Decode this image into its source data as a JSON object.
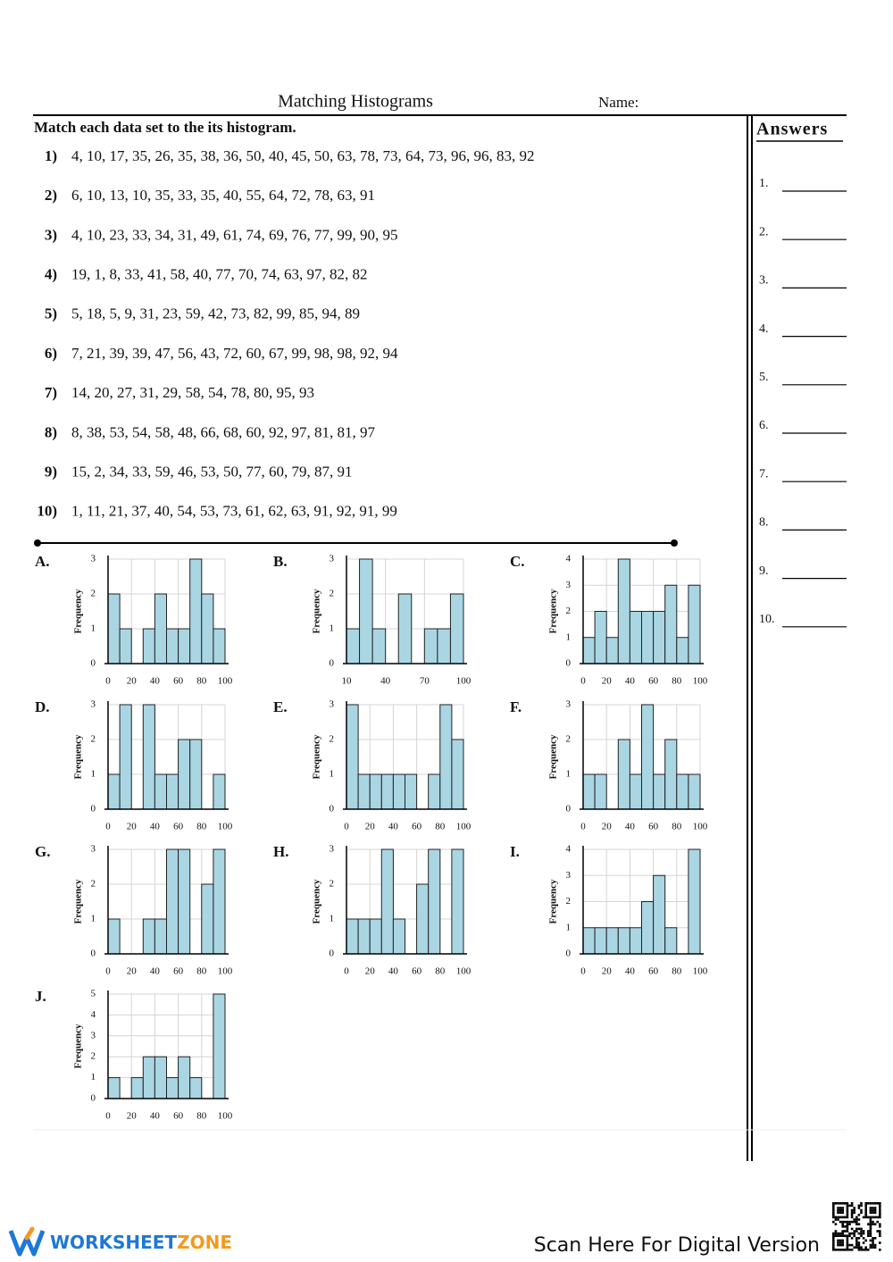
{
  "header": {
    "title": "Matching Histograms",
    "name_label": "Name:"
  },
  "instructions": "Match each data set to the its histogram.",
  "problems": [
    {
      "number": "1)",
      "data": "4, 10, 17, 35, 26, 35, 38, 36, 50, 40, 45, 50, 63, 78, 73, 64, 73, 96, 96, 83, 92"
    },
    {
      "number": "2)",
      "data": "6, 10, 13, 10, 35, 33, 35, 40, 55, 64, 72, 78, 63, 91"
    },
    {
      "number": "3)",
      "data": "4, 10, 23, 33, 34, 31, 49, 61, 74, 69, 76, 77, 99, 90, 95"
    },
    {
      "number": "4)",
      "data": "19, 1, 8, 33, 41, 58, 40, 77, 70, 74, 63, 97, 82, 82"
    },
    {
      "number": "5)",
      "data": "5, 18, 5, 9, 31, 23, 59, 42, 73, 82, 99, 85, 94, 89"
    },
    {
      "number": "6)",
      "data": "7, 21, 39, 39, 47, 56, 43, 72, 60, 67, 99, 98, 98, 92, 94"
    },
    {
      "number": "7)",
      "data": "14, 20, 27, 31, 29, 58, 54, 78, 80, 95, 93"
    },
    {
      "number": "8)",
      "data": "8, 38, 53, 54, 58, 48, 66, 68, 60, 92, 97, 81, 81, 97"
    },
    {
      "number": "9)",
      "data": "15, 2, 34, 33, 59, 46, 53, 50, 77, 60, 79, 87, 91"
    },
    {
      "number": "10)",
      "data": "1, 11, 21, 37, 40, 54, 53, 73, 61, 62, 63, 91, 92, 91, 99"
    }
  ],
  "answers": {
    "title": "Answers",
    "items": [
      "1.",
      "2.",
      "3.",
      "4.",
      "5.",
      "6.",
      "7.",
      "8.",
      "9.",
      "10."
    ]
  },
  "chart_data": [
    {
      "type": "histogram",
      "label": "A.",
      "y_label": "Frequency",
      "color": "#aad6e4",
      "grid": true,
      "bins": [
        0,
        10,
        20,
        30,
        40,
        50,
        60,
        70,
        80,
        90,
        100
      ],
      "counts": [
        2,
        1,
        0,
        1,
        2,
        1,
        1,
        3,
        2,
        1
      ],
      "xlim": [
        0,
        100
      ],
      "ylim": [
        0,
        3
      ],
      "xticks": [
        0,
        20,
        40,
        60,
        80,
        100
      ],
      "yticks": [
        0,
        1,
        2,
        3
      ]
    },
    {
      "type": "histogram",
      "label": "B.",
      "y_label": "Frequency",
      "color": "#aad6e4",
      "grid": true,
      "bins": [
        10,
        20,
        30,
        40,
        50,
        60,
        70,
        80,
        90,
        100
      ],
      "counts": [
        1,
        3,
        1,
        0,
        2,
        0,
        1,
        1,
        2
      ],
      "xlim": [
        10,
        100
      ],
      "ylim": [
        0,
        3
      ],
      "xticks": [
        10,
        40,
        70,
        100
      ],
      "yticks": [
        0,
        1,
        2,
        3
      ]
    },
    {
      "type": "histogram",
      "label": "C.",
      "y_label": "Frequency",
      "color": "#aad6e4",
      "grid": true,
      "bins": [
        0,
        10,
        20,
        30,
        40,
        50,
        60,
        70,
        80,
        90,
        100
      ],
      "counts": [
        1,
        2,
        1,
        4,
        2,
        2,
        2,
        3,
        1,
        3
      ],
      "xlim": [
        0,
        100
      ],
      "ylim": [
        0,
        4
      ],
      "xticks": [
        0,
        20,
        40,
        60,
        80,
        100
      ],
      "yticks": [
        0,
        1,
        2,
        3,
        4
      ]
    },
    {
      "type": "histogram",
      "label": "D.",
      "y_label": "Frequency",
      "color": "#aad6e4",
      "grid": true,
      "bins": [
        0,
        10,
        20,
        30,
        40,
        50,
        60,
        70,
        80,
        90,
        100
      ],
      "counts": [
        1,
        3,
        0,
        3,
        1,
        1,
        2,
        2,
        0,
        1
      ],
      "xlim": [
        0,
        100
      ],
      "ylim": [
        0,
        3
      ],
      "xticks": [
        0,
        20,
        40,
        60,
        80,
        100
      ],
      "yticks": [
        0,
        1,
        2,
        3
      ]
    },
    {
      "type": "histogram",
      "label": "E.",
      "y_label": "Frequency",
      "color": "#aad6e4",
      "grid": true,
      "bins": [
        0,
        10,
        20,
        30,
        40,
        50,
        60,
        70,
        80,
        90,
        100
      ],
      "counts": [
        3,
        1,
        1,
        1,
        1,
        1,
        0,
        1,
        3,
        2
      ],
      "xlim": [
        0,
        100
      ],
      "ylim": [
        0,
        3
      ],
      "xticks": [
        0,
        20,
        40,
        60,
        80,
        100
      ],
      "yticks": [
        0,
        1,
        2,
        3
      ]
    },
    {
      "type": "histogram",
      "label": "F.",
      "y_label": "Frequency",
      "color": "#aad6e4",
      "grid": true,
      "bins": [
        0,
        10,
        20,
        30,
        40,
        50,
        60,
        70,
        80,
        90,
        100
      ],
      "counts": [
        1,
        1,
        0,
        2,
        1,
        3,
        1,
        2,
        1,
        1
      ],
      "xlim": [
        0,
        100
      ],
      "ylim": [
        0,
        3
      ],
      "xticks": [
        0,
        20,
        40,
        60,
        80,
        100
      ],
      "yticks": [
        0,
        1,
        2,
        3
      ]
    },
    {
      "type": "histogram",
      "label": "G.",
      "y_label": "Frequency",
      "color": "#aad6e4",
      "grid": true,
      "bins": [
        0,
        10,
        20,
        30,
        40,
        50,
        60,
        70,
        80,
        90,
        100
      ],
      "counts": [
        1,
        0,
        0,
        1,
        1,
        3,
        3,
        0,
        2,
        3
      ],
      "xlim": [
        0,
        100
      ],
      "ylim": [
        0,
        3
      ],
      "xticks": [
        0,
        20,
        40,
        60,
        80,
        100
      ],
      "yticks": [
        0,
        1,
        2,
        3
      ]
    },
    {
      "type": "histogram",
      "label": "H.",
      "y_label": "Frequency",
      "color": "#aad6e4",
      "grid": true,
      "bins": [
        0,
        10,
        20,
        30,
        40,
        50,
        60,
        70,
        80,
        90,
        100
      ],
      "counts": [
        1,
        1,
        1,
        3,
        1,
        0,
        2,
        3,
        0,
        3
      ],
      "xlim": [
        0,
        100
      ],
      "ylim": [
        0,
        3
      ],
      "xticks": [
        0,
        20,
        40,
        60,
        80,
        100
      ],
      "yticks": [
        0,
        1,
        2,
        3
      ]
    },
    {
      "type": "histogram",
      "label": "I.",
      "y_label": "Frequency",
      "color": "#aad6e4",
      "grid": true,
      "bins": [
        0,
        10,
        20,
        30,
        40,
        50,
        60,
        70,
        80,
        90,
        100
      ],
      "counts": [
        1,
        1,
        1,
        1,
        1,
        2,
        3,
        1,
        0,
        4
      ],
      "xlim": [
        0,
        100
      ],
      "ylim": [
        0,
        4
      ],
      "xticks": [
        0,
        20,
        40,
        60,
        80,
        100
      ],
      "yticks": [
        0,
        1,
        2,
        3,
        4
      ]
    },
    {
      "type": "histogram",
      "label": "J.",
      "y_label": "Frequency",
      "color": "#aad6e4",
      "grid": true,
      "bins": [
        0,
        10,
        20,
        30,
        40,
        50,
        60,
        70,
        80,
        90,
        100
      ],
      "counts": [
        1,
        0,
        1,
        2,
        2,
        1,
        2,
        1,
        0,
        5
      ],
      "xlim": [
        0,
        100
      ],
      "ylim": [
        0,
        5
      ],
      "xticks": [
        0,
        20,
        40,
        60,
        80,
        100
      ],
      "yticks": [
        0,
        1,
        2,
        3,
        4,
        5
      ]
    }
  ],
  "footer": {
    "brand_1": "WORKSHEET",
    "brand_2": "ZONE",
    "scan_text": "Scan Here For Digital Version"
  }
}
